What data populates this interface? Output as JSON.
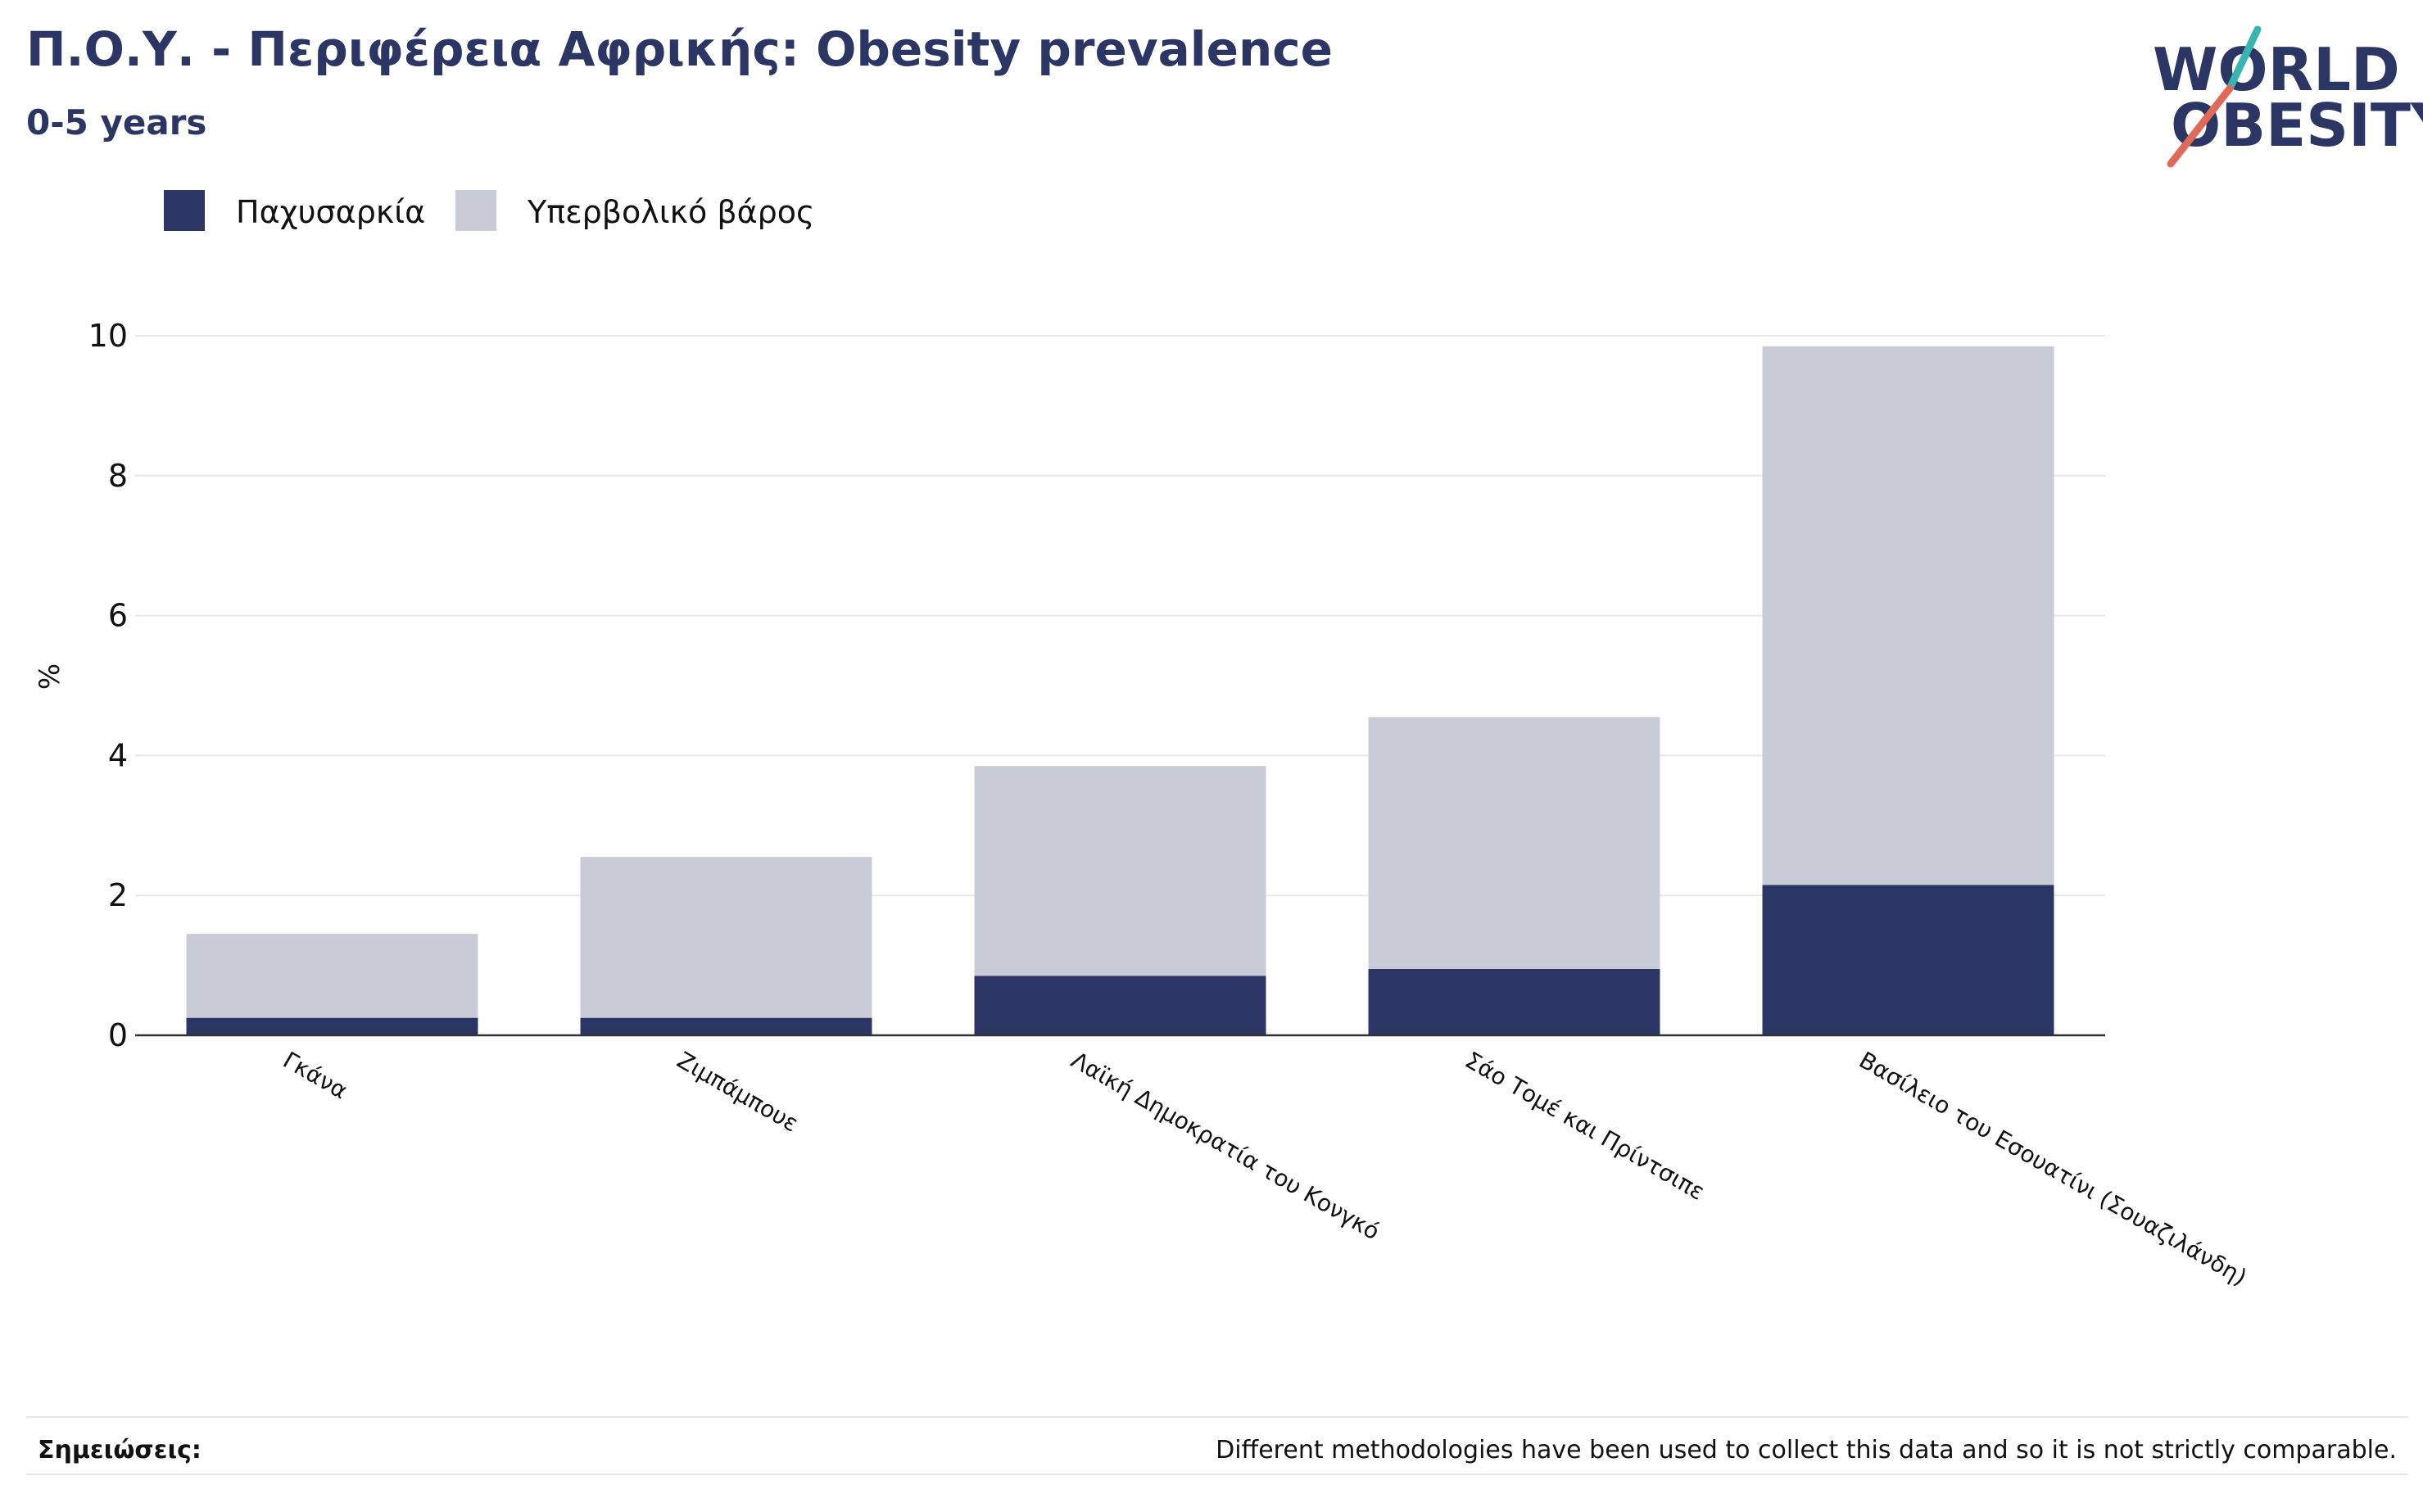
{
  "header": {
    "title": "Π.Ο.Υ. - Περιφέρεια Αφρικής: Obesity prevalence",
    "subtitle": "0-5 years"
  },
  "logo": {
    "line1": "WORLD",
    "line2": "OBESITY",
    "text_color": "#2b3664",
    "slash_colors": [
      "#37b6b0",
      "#e06a57"
    ]
  },
  "legend": {
    "items": [
      {
        "label": "Παχυσαρκία",
        "color": "#2b3664"
      },
      {
        "label": "Υπερβολικό βάρος",
        "color": "#c9cbd7"
      }
    ]
  },
  "chart_data": {
    "type": "bar",
    "stacked": true,
    "categories": [
      "Γκάνα",
      "Ζιμπάμπουε",
      "Λαϊκή Δημοκρατία του Κονγκό",
      "Σάο Τομέ και Πρίντσιπε",
      "Βασίλειο του Εσουατίνι (Σουαζιλάνδη)"
    ],
    "series": [
      {
        "name": "Παχυσαρκία",
        "color": "#2b3664",
        "values": [
          0.25,
          0.25,
          0.85,
          0.95,
          2.15
        ]
      },
      {
        "name": "Υπερβολικό βάρος",
        "color": "#c9cbd7",
        "values": [
          1.2,
          2.3,
          3.0,
          3.6,
          7.7
        ]
      }
    ],
    "ylabel": "%",
    "xlabel": "",
    "ylim": [
      0,
      10
    ],
    "yticks": [
      0,
      2,
      4,
      6,
      8,
      10
    ],
    "grid": true,
    "legend_position": "top-left"
  },
  "notes": {
    "label": "Σημειώσεις:",
    "text": "Different methodologies have been used to collect this data and so it is not strictly comparable."
  }
}
